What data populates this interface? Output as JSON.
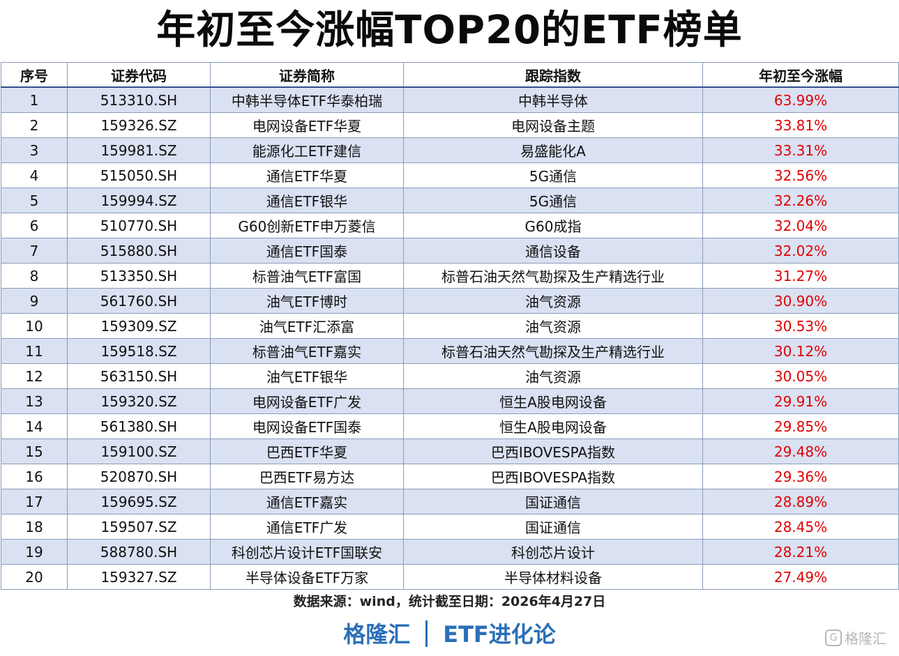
{
  "title": "年初至今涨幅TOP20的ETF榜单",
  "table": {
    "headers": [
      "序号",
      "证券代码",
      "证券简称",
      "跟踪指数",
      "年初至今涨幅"
    ],
    "rows": [
      [
        "1",
        "513310.SH",
        "中韩半导体ETF华泰柏瑞",
        "中韩半导体",
        "63.99%"
      ],
      [
        "2",
        "159326.SZ",
        "电网设备ETF华夏",
        "电网设备主题",
        "33.81%"
      ],
      [
        "3",
        "159981.SZ",
        "能源化工ETF建信",
        "易盛能化A",
        "33.31%"
      ],
      [
        "4",
        "515050.SH",
        "通信ETF华夏",
        "5G通信",
        "32.56%"
      ],
      [
        "5",
        "159994.SZ",
        "通信ETF银华",
        "5G通信",
        "32.26%"
      ],
      [
        "6",
        "510770.SH",
        "G60创新ETF申万菱信",
        "G60成指",
        "32.04%"
      ],
      [
        "7",
        "515880.SH",
        "通信ETF国泰",
        "通信设备",
        "32.02%"
      ],
      [
        "8",
        "513350.SH",
        "标普油气ETF富国",
        "标普石油天然气勘探及生产精选行业",
        "31.27%"
      ],
      [
        "9",
        "561760.SH",
        "油气ETF博时",
        "油气资源",
        "30.90%"
      ],
      [
        "10",
        "159309.SZ",
        "油气ETF汇添富",
        "油气资源",
        "30.53%"
      ],
      [
        "11",
        "159518.SZ",
        "标普油气ETF嘉实",
        "标普石油天然气勘探及生产精选行业",
        "30.12%"
      ],
      [
        "12",
        "563150.SH",
        "油气ETF银华",
        "油气资源",
        "30.05%"
      ],
      [
        "13",
        "159320.SZ",
        "电网设备ETF广发",
        "恒生A股电网设备",
        "29.91%"
      ],
      [
        "14",
        "561380.SH",
        "电网设备ETF国泰",
        "恒生A股电网设备",
        "29.85%"
      ],
      [
        "15",
        "159100.SZ",
        "巴西ETF华夏",
        "巴西IBOVESPA指数",
        "29.48%"
      ],
      [
        "16",
        "520870.SH",
        "巴西ETF易方达",
        "巴西IBOVESPA指数",
        "29.36%"
      ],
      [
        "17",
        "159695.SZ",
        "通信ETF嘉实",
        "国证通信",
        "28.89%"
      ],
      [
        "18",
        "159507.SZ",
        "通信ETF广发",
        "国证通信",
        "28.45%"
      ],
      [
        "19",
        "588780.SH",
        "科创芯片设计ETF国联安",
        "科创芯片设计",
        "28.21%"
      ],
      [
        "20",
        "159327.SZ",
        "半导体设备ETF万家",
        "半导体材料设备",
        "27.49%"
      ]
    ]
  },
  "source": "数据来源：wind，统计截至日期：2026年4月27日",
  "brand": {
    "left": "格隆汇",
    "right": "ETF进化论"
  },
  "watermark": {
    "logo": "G",
    "text": "格隆汇"
  },
  "colors": {
    "header_border": "#2f4f8a",
    "stripe": "#d9e1f2",
    "pct": "#e00000",
    "brand": "#2a6fb8"
  }
}
